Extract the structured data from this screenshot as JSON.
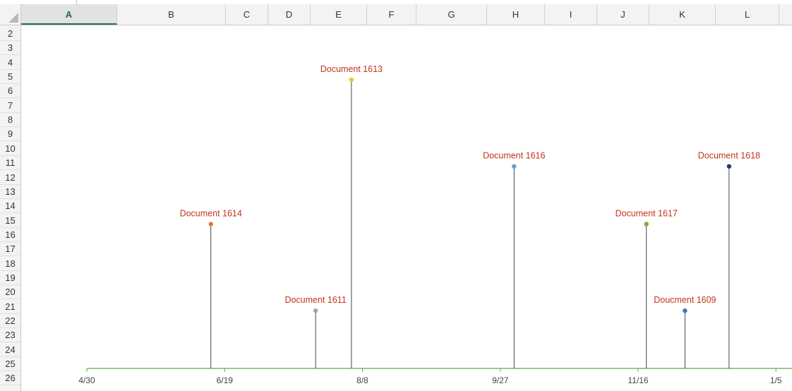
{
  "columns": [
    "A",
    "B",
    "C",
    "D",
    "E",
    "F",
    "G",
    "H",
    "I",
    "J",
    "K",
    "L"
  ],
  "active_column": "A",
  "rows": [
    "2",
    "3",
    "4",
    "5",
    "6",
    "7",
    "8",
    "9",
    "10",
    "11",
    "12",
    "13",
    "14",
    "15",
    "16",
    "17",
    "18",
    "19",
    "20",
    "21",
    "22",
    "23",
    "24",
    "25",
    "26"
  ],
  "chart_data": {
    "type": "scatter",
    "title": "",
    "xlabel": "",
    "ylabel": "",
    "x_axis_type": "date",
    "xlim": [
      "4/30",
      "1/15"
    ],
    "ylim": [
      0,
      10
    ],
    "gridlines": false,
    "legend": "none",
    "axis_color": "#5aaa46",
    "stem_color": "#333333",
    "tick_labels": [
      "4/30",
      "6/19",
      "8/8",
      "9/27",
      "11/16",
      "1/5"
    ],
    "label_color": "#c0361b",
    "points": [
      {
        "label": "Document 1614",
        "date": "6/14",
        "value": 5,
        "color": "#e07b39"
      },
      {
        "label": "Document 1611",
        "date": "7/22",
        "value": 2,
        "color": "#a5a5a5"
      },
      {
        "label": "Document 1613",
        "date": "8/4",
        "value": 10,
        "color": "#f2c12e"
      },
      {
        "label": "Document 1616",
        "date": "10/2",
        "value": 7,
        "color": "#6a9fd2"
      },
      {
        "label": "Document 1617",
        "date": "11/19",
        "value": 5,
        "color": "#70ad47"
      },
      {
        "label": "Doucment 1609",
        "date": "12/3",
        "value": 2,
        "color": "#4472c4"
      },
      {
        "label": "Document 1618",
        "date": "12/19",
        "value": 7,
        "color": "#1f3a77"
      }
    ]
  }
}
